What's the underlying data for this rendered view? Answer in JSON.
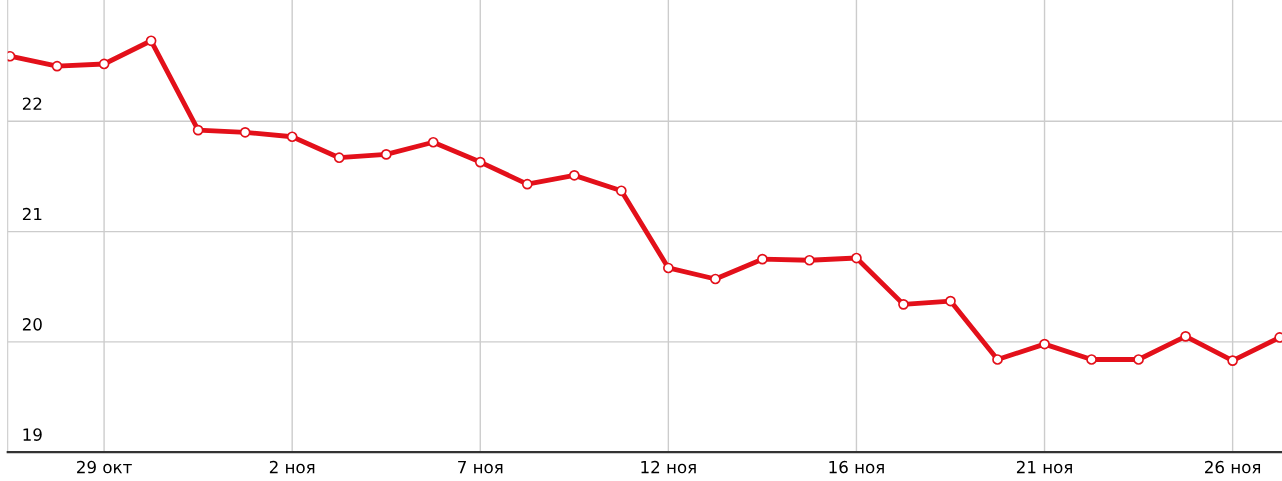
{
  "chart_data": {
    "type": "line",
    "categories": [
      null,
      null,
      "29 окт",
      null,
      null,
      null,
      "2 ноя",
      null,
      null,
      null,
      "7 ноя",
      null,
      null,
      null,
      "12 ноя",
      null,
      null,
      null,
      "16 ноя",
      null,
      null,
      null,
      "21 ноя",
      null,
      null,
      null,
      "26 ноя",
      null
    ],
    "series": [
      {
        "color": "#e3101a",
        "values": [
          22.59,
          22.5,
          22.52,
          22.73,
          21.92,
          21.9,
          21.86,
          21.67,
          21.7,
          21.81,
          21.63,
          21.43,
          21.51,
          21.37,
          20.67,
          20.57,
          20.75,
          20.74,
          20.76,
          20.34,
          20.37,
          19.84,
          19.98,
          19.84,
          19.84,
          20.05,
          19.83,
          20.04
        ]
      }
    ],
    "ylim": [
      19,
      23.1
    ],
    "yticks": [
      19,
      20,
      21,
      22
    ],
    "grid": true,
    "marker": "circle",
    "line_style": "solid"
  }
}
